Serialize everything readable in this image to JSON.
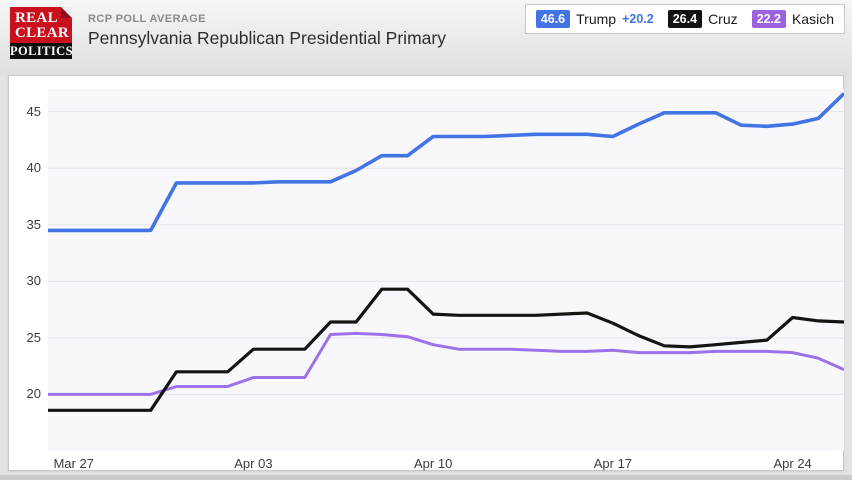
{
  "header": {
    "kicker": "RCP POLL AVERAGE",
    "title": "Pennsylvania Republican Presidential Primary",
    "logo": {
      "line1": "REAL",
      "line2": "CLEAR",
      "line3": "POLITICS",
      "red": "#c8111d",
      "black": "#0f0f0f"
    }
  },
  "legend": {
    "items": [
      {
        "value": "46.6",
        "label": "Trump",
        "change": "+20.2",
        "color": "#4374e4"
      },
      {
        "value": "26.4",
        "label": "Cruz",
        "change": "",
        "color": "#121212"
      },
      {
        "value": "22.2",
        "label": "Kasich",
        "change": "",
        "color": "#9c62e0"
      }
    ]
  },
  "chart_data": {
    "type": "line",
    "title": "Pennsylvania Republican Presidential Primary",
    "x": [
      "Mar 26",
      "Mar 27",
      "Mar 28",
      "Mar 29",
      "Mar 30",
      "Mar 31",
      "Apr 01",
      "Apr 02",
      "Apr 03",
      "Apr 04",
      "Apr 05",
      "Apr 06",
      "Apr 07",
      "Apr 08",
      "Apr 09",
      "Apr 10",
      "Apr 11",
      "Apr 12",
      "Apr 13",
      "Apr 14",
      "Apr 15",
      "Apr 16",
      "Apr 17",
      "Apr 18",
      "Apr 19",
      "Apr 20",
      "Apr 21",
      "Apr 22",
      "Apr 23",
      "Apr 24",
      "Apr 25",
      "Apr 26"
    ],
    "series": [
      {
        "name": "Trump",
        "color": "#4374e4",
        "stroke_width": 3.6,
        "values": [
          34.5,
          34.5,
          34.5,
          34.5,
          34.5,
          38.7,
          38.7,
          38.7,
          38.7,
          38.8,
          38.8,
          38.8,
          39.8,
          41.1,
          41.1,
          42.8,
          42.8,
          42.8,
          42.9,
          43.0,
          43.0,
          43.0,
          42.8,
          43.9,
          44.9,
          44.9,
          44.9,
          43.8,
          43.7,
          43.9,
          44.4,
          46.6
        ]
      },
      {
        "name": "Cruz",
        "color": "#141414",
        "stroke_width": 3.2,
        "values": [
          18.6,
          18.6,
          18.6,
          18.6,
          18.6,
          22.0,
          22.0,
          22.0,
          24.0,
          24.0,
          24.0,
          26.4,
          26.4,
          29.3,
          29.3,
          27.1,
          27.0,
          27.0,
          27.0,
          27.0,
          27.1,
          27.2,
          26.3,
          25.2,
          24.3,
          24.2,
          24.4,
          24.6,
          24.8,
          26.8,
          26.5,
          26.4
        ]
      },
      {
        "name": "Kasich",
        "color": "#9d72e8",
        "stroke_width": 3.0,
        "values": [
          20.0,
          20.0,
          20.0,
          20.0,
          20.0,
          20.7,
          20.7,
          20.7,
          21.5,
          21.5,
          21.5,
          25.3,
          25.4,
          25.3,
          25.1,
          24.4,
          24.0,
          24.0,
          24.0,
          23.9,
          23.8,
          23.8,
          23.9,
          23.7,
          23.7,
          23.7,
          23.8,
          23.8,
          23.8,
          23.7,
          23.2,
          22.2
        ]
      }
    ],
    "x_tick_labels": [
      "Mar 27",
      "Apr 03",
      "Apr 10",
      "Apr 17",
      "Apr 24"
    ],
    "x_tick_indices": [
      1,
      8,
      15,
      22,
      29
    ],
    "y_ticks": [
      20,
      25,
      30,
      35,
      40,
      45
    ],
    "ylim": [
      15.0,
      47.0
    ],
    "grid": true,
    "legend_position": "top-right",
    "plot_bg": "#f8f8fc",
    "grid_color": "#e3e3eb"
  }
}
